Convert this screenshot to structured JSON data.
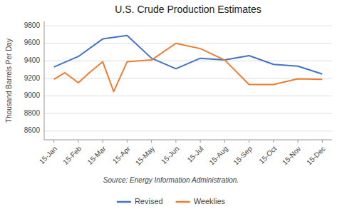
{
  "chart_data": {
    "type": "line",
    "title": "U.S. Crude Production Estimates",
    "ylabel": "Thousand Barrels Per Day",
    "annotations": [
      "Source: Energy Information Administration."
    ],
    "xlim": [
      -0.4,
      11.4
    ],
    "xticks": [
      {
        "value": 0,
        "label": "15-Jan"
      },
      {
        "value": 1,
        "label": "15-Feb"
      },
      {
        "value": 2,
        "label": "15-Mar"
      },
      {
        "value": 3,
        "label": "15-Apr"
      },
      {
        "value": 4,
        "label": "15-May"
      },
      {
        "value": 5,
        "label": "15-Jun"
      },
      {
        "value": 6,
        "label": "15-Jul"
      },
      {
        "value": 7,
        "label": "15-Aug"
      },
      {
        "value": 8,
        "label": "15-Sep"
      },
      {
        "value": 9,
        "label": "15-Oct"
      },
      {
        "value": 10,
        "label": "15-Nov"
      },
      {
        "value": 11,
        "label": "15-Dec"
      }
    ],
    "ylim": [
      8500,
      9850
    ],
    "yticks": [
      8600,
      8800,
      9000,
      9200,
      9400,
      9600,
      9800
    ],
    "grid": true,
    "legend": "bottom",
    "series": [
      {
        "name": "Revised",
        "color": "#4472c4",
        "x": [
          0,
          1,
          2,
          3,
          4,
          5,
          6,
          7,
          8,
          9,
          10,
          11
        ],
        "values": [
          9330,
          9450,
          9650,
          9690,
          9430,
          9310,
          9430,
          9410,
          9460,
          9360,
          9340,
          9250
        ]
      },
      {
        "name": "Weeklies",
        "color": "#ed7d31",
        "x": [
          0,
          0.45,
          1.0,
          1.45,
          2.0,
          2.45,
          3.0,
          4.0,
          5.0,
          6.0,
          7.0,
          8.0,
          9.0,
          10.0,
          11.0
        ],
        "values": [
          9190,
          9265,
          9150,
          9265,
          9390,
          9050,
          9390,
          9410,
          9600,
          9540,
          9410,
          9130,
          9130,
          9195,
          9190
        ]
      }
    ]
  }
}
